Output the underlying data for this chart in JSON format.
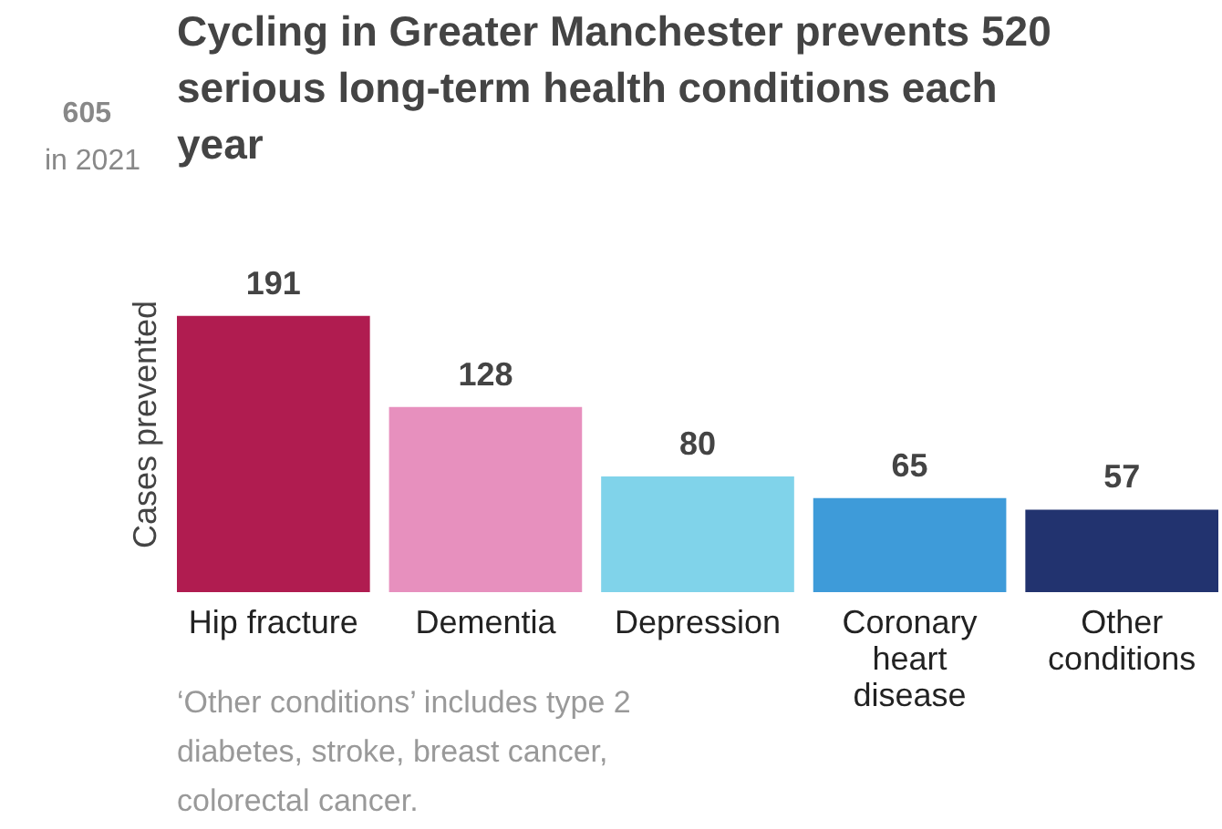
{
  "chart_data": {
    "type": "bar",
    "title": "Cycling in Greater Manchester prevents 520 serious long-term health conditions each year",
    "ylabel": "Cases prevented",
    "categories": [
      "Hip fracture",
      "Dementia",
      "Depression",
      "Coronary heart disease",
      "Other conditions"
    ],
    "values": [
      191,
      128,
      80,
      65,
      57
    ],
    "colors": [
      "#b01c50",
      "#e790be",
      "#80d3ea",
      "#3e9bd9",
      "#22336f"
    ],
    "data_labels": true,
    "annotations": [
      "605",
      "in 2021",
      "‘Other conditions’ includes type 2 diabetes, stroke, breast cancer, colorectal cancer."
    ]
  }
}
